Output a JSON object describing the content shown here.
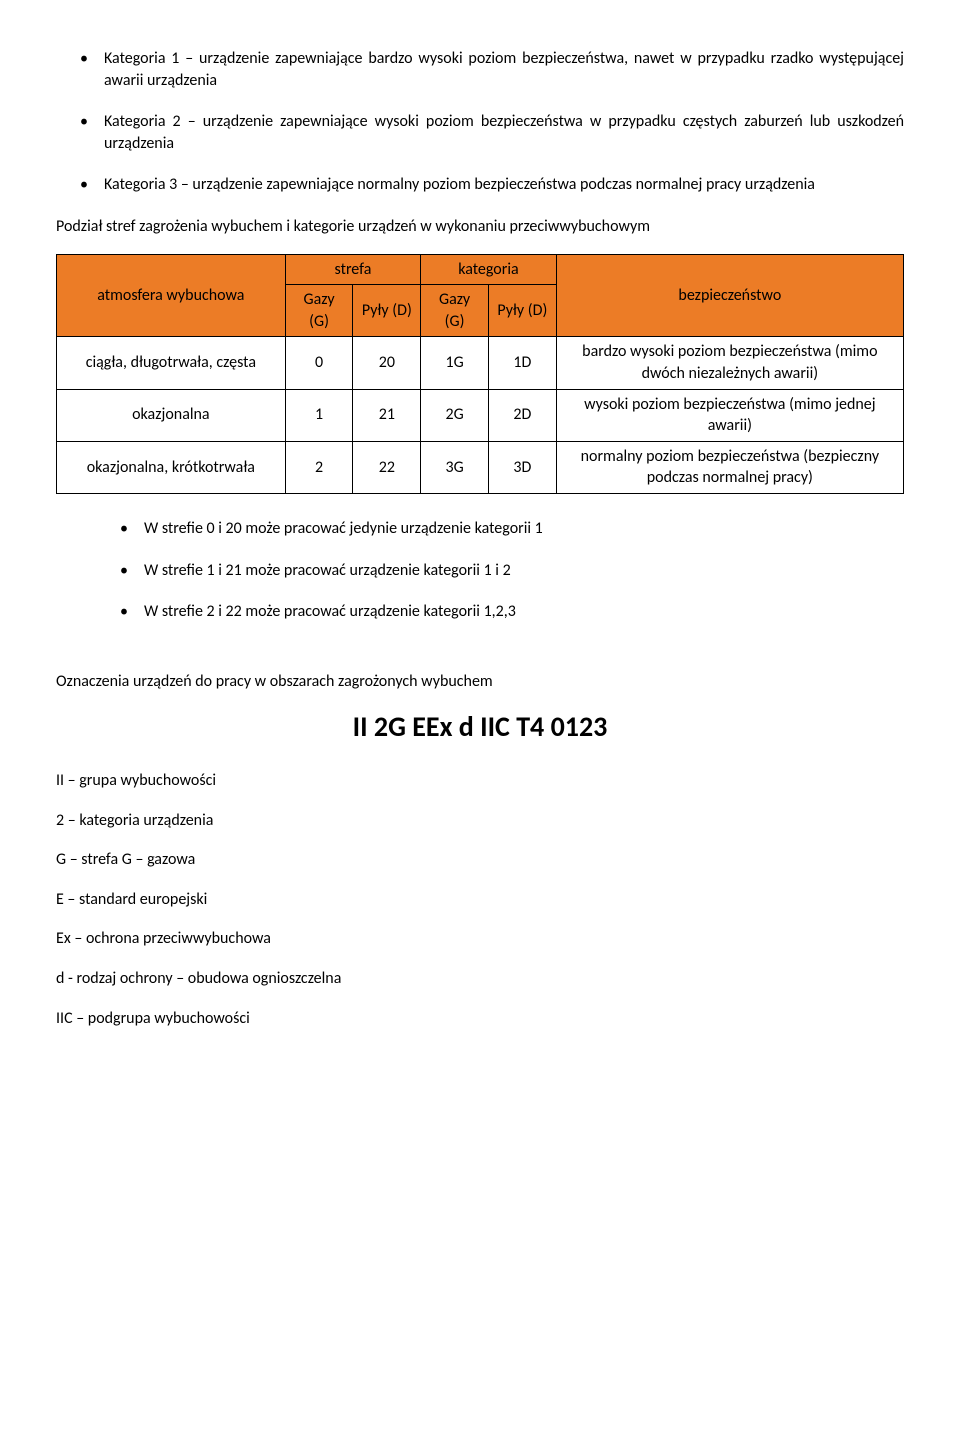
{
  "accent_color": "#ec7c26",
  "bullets_top": [
    "Kategoria 1 – urządzenie zapewniające bardzo wysoki poziom bezpieczeństwa, nawet w przypadku rzadko występującej awarii urządzenia",
    "Kategoria 2 – urządzenie zapewniające wysoki poziom bezpieczeństwa w przypadku częstych zaburzeń lub uszkodzeń urządzenia",
    "Kategoria 3 – urządzenie zapewniające normalny poziom bezpieczeństwa podczas normalnej pracy urządzenia"
  ],
  "table_intro": "Podział stref zagrożenia wybuchem i kategorie urządzeń w wykonaniu przeciwwybuchowym",
  "table": {
    "headers": {
      "atmosfera": "atmosfera wybuchowa",
      "strefa": "strefa",
      "kategoria": "kategoria",
      "gazy": "Gazy (G)",
      "pyly": "Pyły (D)",
      "bezpieczenstwo": "bezpieczeństwo"
    },
    "rows": [
      {
        "atm": "ciągła, długotrwała, częsta",
        "sg": "0",
        "sd": "20",
        "kg": "1G",
        "kd": "1D",
        "bezp": "bardzo wysoki poziom bezpieczeństwa (mimo dwóch niezależnych awarii)"
      },
      {
        "atm": "okazjonalna",
        "sg": "1",
        "sd": "21",
        "kg": "2G",
        "kd": "2D",
        "bezp": "wysoki poziom bezpieczeństwa (mimo jednej awarii)"
      },
      {
        "atm": "okazjonalna, krótkotrwała",
        "sg": "2",
        "sd": "22",
        "kg": "3G",
        "kd": "3D",
        "bezp": "normalny poziom bezpieczeństwa (bezpieczny podczas normalnej pracy)"
      }
    ]
  },
  "bullets_mid": [
    "W strefie 0 i 20 może pracować jedynie urządzenie kategorii 1",
    "W strefie 1 i 21 może pracować urządzenie kategorii 1 i 2",
    "W strefie 2 i 22 może pracować urządzenie kategorii 1,2,3"
  ],
  "marking_intro": "Oznaczenia urządzeń do pracy w obszarach zagrożonych wybuchem",
  "marking_code": "II 2G EEx d IIC T4 0123",
  "definitions": [
    "II – grupa wybuchowości",
    "2 – kategoria urządzenia",
    "G – strefa G – gazowa",
    "E – standard europejski",
    "Ex – ochrona przeciwwybuchowa",
    "d -  rodzaj ochrony – obudowa ognioszczelna",
    "IIC – podgrupa wybuchowości"
  ]
}
